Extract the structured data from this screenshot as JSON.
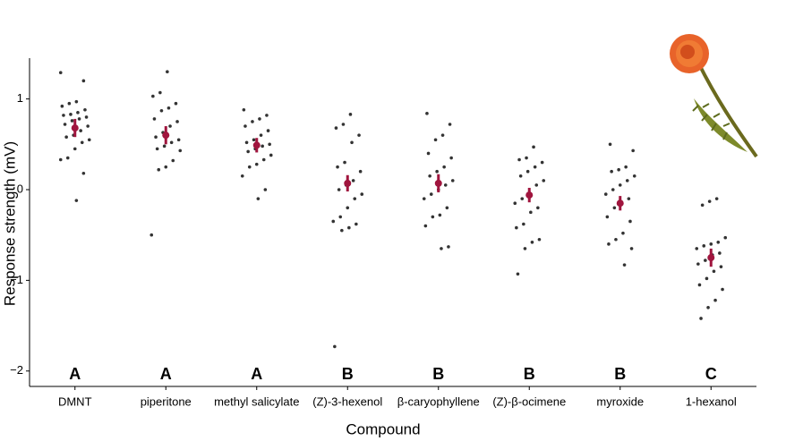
{
  "chart_data": {
    "type": "strip",
    "ylabel": "Response strength (mV)",
    "xlabel": "Compound",
    "categories": [
      "DMNT",
      "piperitone",
      "methyl salicylate",
      "(Z)-3-hexenol",
      "β-caryophyllene",
      "(Z)-β-ocimene",
      "myroxide",
      "1-hexanol"
    ],
    "points": [
      [
        1.29,
        1.2,
        0.97,
        0.95,
        0.92,
        0.88,
        0.85,
        0.83,
        0.82,
        0.8,
        0.78,
        0.76,
        0.72,
        0.7,
        0.65,
        0.6,
        0.58,
        0.55,
        0.52,
        0.45,
        0.35,
        0.33,
        0.18,
        -0.12
      ],
      [
        1.3,
        1.07,
        1.03,
        0.95,
        0.9,
        0.87,
        0.78,
        0.75,
        0.7,
        0.63,
        0.58,
        0.55,
        0.52,
        0.48,
        0.45,
        0.43,
        0.32,
        0.25,
        0.22,
        -0.5
      ],
      [
        0.88,
        0.82,
        0.78,
        0.75,
        0.7,
        0.65,
        0.6,
        0.55,
        0.52,
        0.5,
        0.48,
        0.45,
        0.42,
        0.38,
        0.33,
        0.28,
        0.25,
        0.15,
        0.0,
        -0.1
      ],
      [
        0.83,
        0.72,
        0.68,
        0.6,
        0.52,
        0.3,
        0.25,
        0.2,
        0.1,
        0.05,
        0.0,
        -0.05,
        -0.1,
        -0.2,
        -0.3,
        -0.35,
        -0.38,
        -0.42,
        -0.45,
        -1.73
      ],
      [
        0.84,
        0.72,
        0.6,
        0.55,
        0.4,
        0.35,
        0.25,
        0.2,
        0.15,
        0.1,
        0.05,
        0.0,
        -0.05,
        -0.1,
        -0.2,
        -0.28,
        -0.3,
        -0.4,
        -0.63,
        -0.65
      ],
      [
        0.47,
        0.35,
        0.33,
        0.3,
        0.25,
        0.2,
        0.15,
        0.1,
        0.05,
        -0.05,
        -0.1,
        -0.15,
        -0.2,
        -0.25,
        -0.38,
        -0.42,
        -0.55,
        -0.58,
        -0.65,
        -0.93
      ],
      [
        0.5,
        0.43,
        0.25,
        0.22,
        0.2,
        0.15,
        0.1,
        0.05,
        0.0,
        -0.05,
        -0.1,
        -0.15,
        -0.2,
        -0.3,
        -0.35,
        -0.48,
        -0.55,
        -0.6,
        -0.65,
        -0.83
      ],
      [
        -0.1,
        -0.13,
        -0.17,
        -0.53,
        -0.58,
        -0.6,
        -0.62,
        -0.65,
        -0.7,
        -0.72,
        -0.78,
        -0.82,
        -0.85,
        -0.9,
        -0.98,
        -1.05,
        -1.1,
        -1.22,
        -1.3,
        -1.42
      ]
    ],
    "means": [
      0.68,
      0.6,
      0.49,
      0.07,
      0.07,
      -0.06,
      -0.15,
      -0.75
    ],
    "errors": [
      0.1,
      0.1,
      0.08,
      0.09,
      0.1,
      0.08,
      0.08,
      0.1
    ],
    "letters": [
      "A",
      "A",
      "A",
      "B",
      "B",
      "B",
      "B",
      "C"
    ],
    "ylim": [
      -2.17,
      1.45
    ],
    "yticks": [
      {
        "value": -2,
        "label": "−2"
      },
      {
        "value": -1,
        "label": "−1"
      },
      0,
      1
    ],
    "point_color": "#333333",
    "mean_color": "#a0153e"
  }
}
